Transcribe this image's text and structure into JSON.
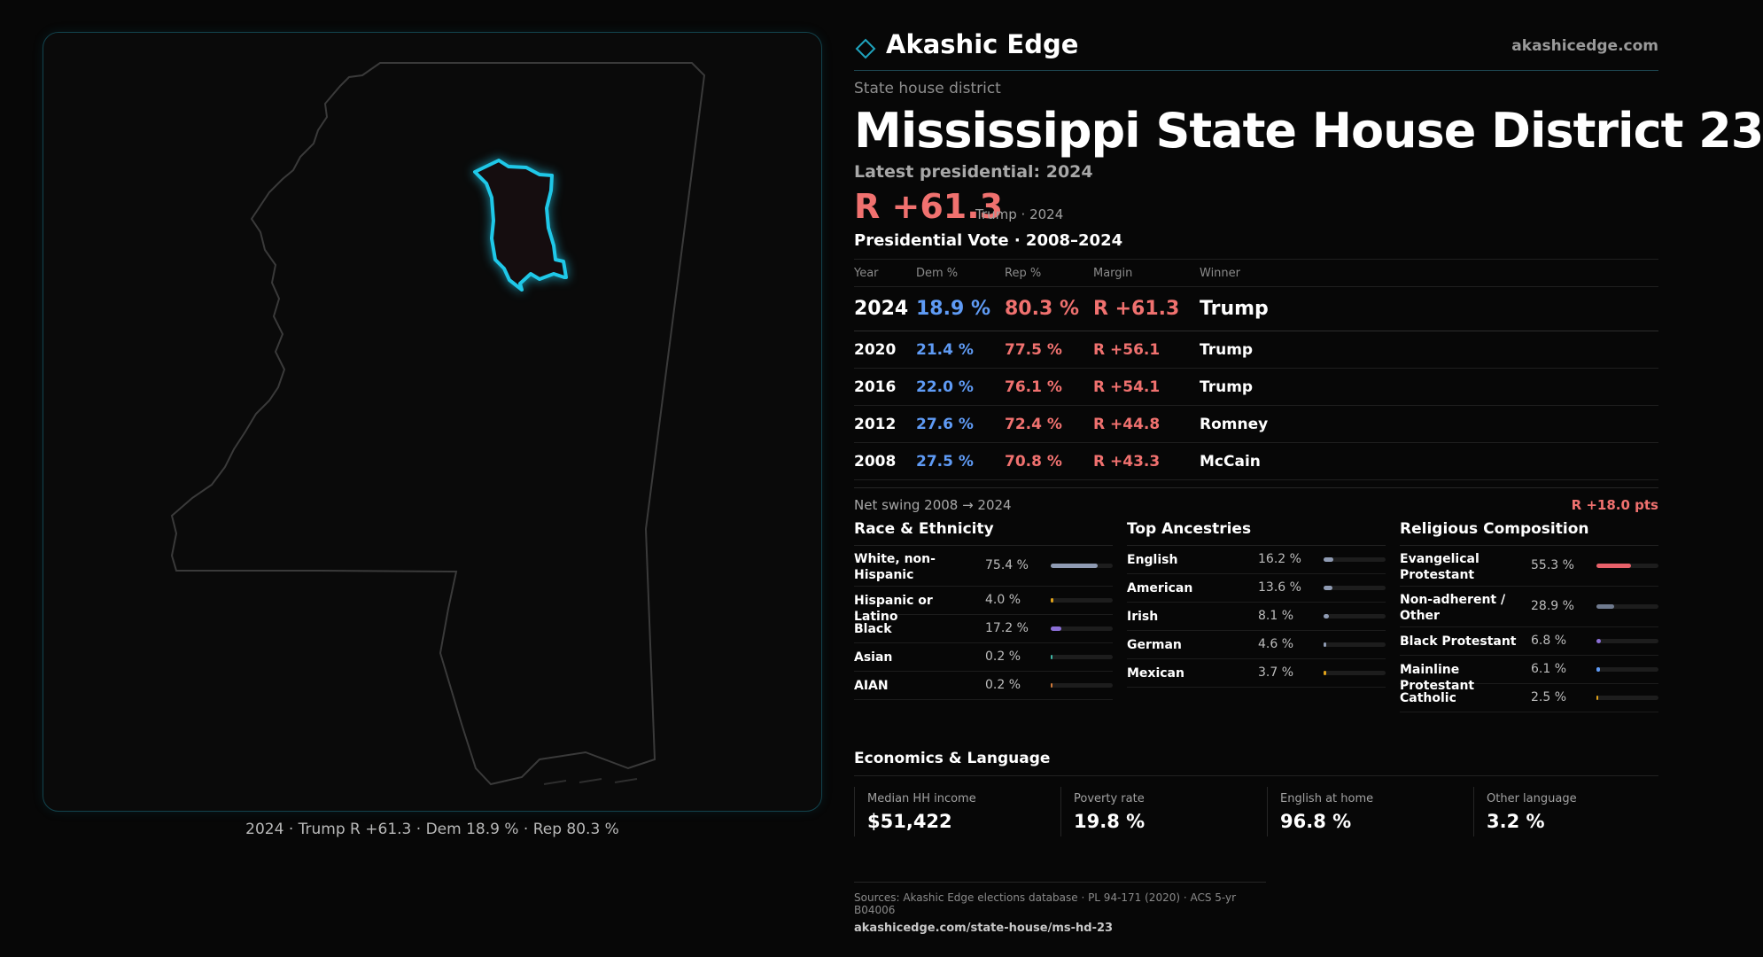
{
  "brand": {
    "name": "Akashic Edge",
    "url": "akashicedge.com"
  },
  "header": {
    "kicker": "State house district",
    "title": "Mississippi State House District 23",
    "latest_label": "Latest presidential: 2024",
    "margin_big": "R +61.3",
    "margin_sub": "Trump · 2024",
    "votes_title": "Presidential Vote · 2008–2024"
  },
  "votes": {
    "columns": [
      "Year",
      "Dem %",
      "Rep %",
      "Margin",
      "Winner"
    ],
    "rows": [
      {
        "year": "2024",
        "dem": "18.9 %",
        "rep": "80.3 %",
        "margin": "R +61.3",
        "winner": "Trump"
      },
      {
        "year": "2020",
        "dem": "21.4 %",
        "rep": "77.5 %",
        "margin": "R +56.1",
        "winner": "Trump"
      },
      {
        "year": "2016",
        "dem": "22.0 %",
        "rep": "76.1 %",
        "margin": "R +54.1",
        "winner": "Trump"
      },
      {
        "year": "2012",
        "dem": "27.6 %",
        "rep": "72.4 %",
        "margin": "R +44.8",
        "winner": "Romney"
      },
      {
        "year": "2008",
        "dem": "27.5 %",
        "rep": "70.8 %",
        "margin": "R +43.3",
        "winner": "McCain"
      }
    ]
  },
  "swing": {
    "label": "Net swing 2008 → 2024",
    "value": "R +18.0 pts"
  },
  "race": {
    "title": "Race & Ethnicity",
    "items": [
      {
        "label": "White, non-Hispanic",
        "pct": "75.4 %",
        "value": 0.754,
        "color": "#8f9bb3"
      },
      {
        "label": "Hispanic or Latino",
        "pct": "4.0 %",
        "value": 0.04,
        "color": "#e0a21a"
      },
      {
        "label": "Black",
        "pct": "17.2 %",
        "value": 0.172,
        "color": "#8b6fd6"
      },
      {
        "label": "Asian",
        "pct": "0.2 %",
        "value": 0.002,
        "color": "#3fb7a6"
      },
      {
        "label": "AIAN",
        "pct": "0.2 %",
        "value": 0.002,
        "color": "#d07a3a"
      }
    ]
  },
  "ancestry": {
    "title": "Top Ancestries",
    "items": [
      {
        "label": "English",
        "pct": "16.2 %",
        "value": 0.162,
        "color": "#8f9bb3"
      },
      {
        "label": "American",
        "pct": "13.6 %",
        "value": 0.136,
        "color": "#8f9bb3"
      },
      {
        "label": "Irish",
        "pct": "8.1 %",
        "value": 0.081,
        "color": "#8f9bb3"
      },
      {
        "label": "German",
        "pct": "4.6 %",
        "value": 0.046,
        "color": "#8f9bb3"
      },
      {
        "label": "Mexican",
        "pct": "3.7 %",
        "value": 0.037,
        "color": "#e0a21a"
      }
    ]
  },
  "religion": {
    "title": "Religious Composition",
    "items": [
      {
        "label": "Evangelical Protestant",
        "pct": "55.3 %",
        "value": 0.553,
        "color": "#e8616a"
      },
      {
        "label": "Non-adherent / Other",
        "pct": "28.9 %",
        "value": 0.289,
        "color": "#6f7a8e"
      },
      {
        "label": "Black Protestant",
        "pct": "6.8 %",
        "value": 0.068,
        "color": "#8b6fd6"
      },
      {
        "label": "Mainline Protestant",
        "pct": "6.1 %",
        "value": 0.061,
        "color": "#5f9bf5"
      },
      {
        "label": "Catholic",
        "pct": "2.5 %",
        "value": 0.025,
        "color": "#e0a21a"
      }
    ]
  },
  "economics": {
    "title": "Economics & Language",
    "stats": [
      {
        "label": "Median HH income",
        "value": "$51,422"
      },
      {
        "label": "Poverty rate",
        "value": "19.8 %"
      },
      {
        "label": "English at home",
        "value": "96.8 %"
      },
      {
        "label": "Other language",
        "value": "3.2 %"
      }
    ]
  },
  "map": {
    "caption": "2024 · Trump R +61.3 · Dem 18.9 % · Rep 80.3 %",
    "highlight_color": "#1fc8e8"
  },
  "sources": {
    "line1": "Sources: Akashic Edge elections database · PL 94-171 (2020) · ACS 5-yr B04006",
    "line2": "akashicedge.com/state-house/ms-hd-23"
  }
}
